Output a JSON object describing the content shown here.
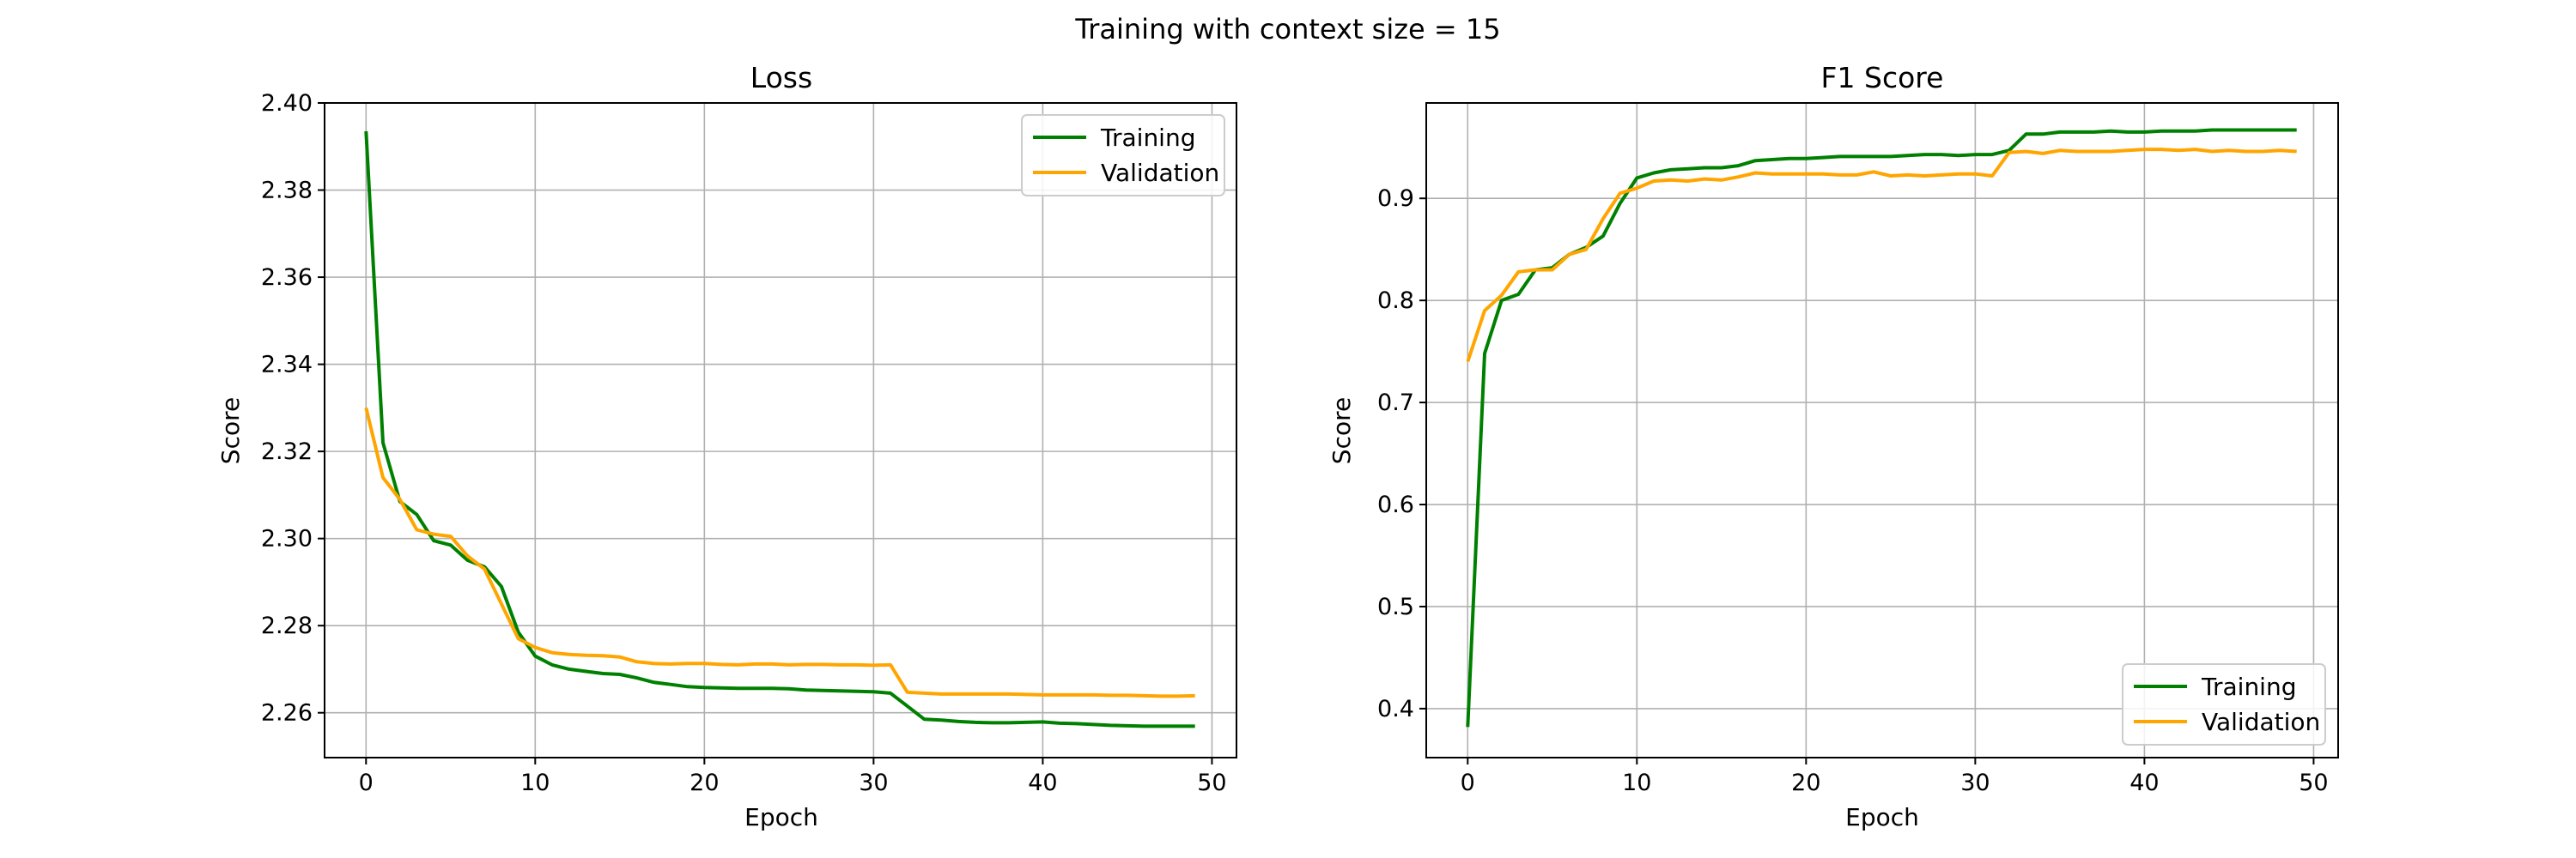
{
  "figure": {
    "suptitle": "Training with context size = 15"
  },
  "chart_data": [
    {
      "type": "line",
      "title": "Loss",
      "xlabel": "Epoch",
      "ylabel": "Score",
      "xlim": [
        -2.45,
        51.45
      ],
      "ylim": [
        2.2497,
        2.4
      ],
      "xticks": [
        0,
        10,
        20,
        30,
        40,
        50
      ],
      "yticks": [
        2.26,
        2.28,
        2.3,
        2.32,
        2.34,
        2.36,
        2.38,
        2.4
      ],
      "ytick_decimals": 2,
      "grid": true,
      "legend_position": "upper right",
      "x": [
        0,
        1,
        2,
        3,
        4,
        5,
        6,
        7,
        8,
        9,
        10,
        11,
        12,
        13,
        14,
        15,
        16,
        17,
        18,
        19,
        20,
        21,
        22,
        23,
        24,
        25,
        26,
        27,
        28,
        29,
        30,
        31,
        32,
        33,
        34,
        35,
        36,
        37,
        38,
        39,
        40,
        41,
        42,
        43,
        44,
        45,
        46,
        47,
        48,
        49
      ],
      "series": [
        {
          "name": "Training",
          "color": "#008000",
          "values": [
            2.3935,
            2.322,
            2.3085,
            2.3055,
            2.2995,
            2.2985,
            2.295,
            2.2935,
            2.289,
            2.2785,
            2.273,
            2.271,
            2.27,
            2.2695,
            2.269,
            2.2688,
            2.268,
            2.267,
            2.2665,
            2.266,
            2.2658,
            2.2657,
            2.2656,
            2.2656,
            2.2656,
            2.2655,
            2.2652,
            2.2651,
            2.265,
            2.2649,
            2.2648,
            2.2645,
            2.2615,
            2.2585,
            2.2583,
            2.258,
            2.2578,
            2.2577,
            2.2577,
            2.2578,
            2.2579,
            2.2576,
            2.2575,
            2.2573,
            2.2571,
            2.257,
            2.2569,
            2.2569,
            2.2569,
            2.2569
          ]
        },
        {
          "name": "Validation",
          "color": "#ffa500",
          "values": [
            2.33,
            2.314,
            2.309,
            2.302,
            2.301,
            2.3005,
            2.296,
            2.293,
            2.285,
            2.277,
            2.275,
            2.2738,
            2.2734,
            2.2732,
            2.2731,
            2.2728,
            2.2717,
            2.2713,
            2.2712,
            2.2713,
            2.2713,
            2.2711,
            2.271,
            2.2712,
            2.2712,
            2.271,
            2.2711,
            2.2711,
            2.271,
            2.271,
            2.2709,
            2.271,
            2.2647,
            2.2645,
            2.2643,
            2.2643,
            2.2643,
            2.2643,
            2.2643,
            2.2642,
            2.2641,
            2.2641,
            2.2641,
            2.2641,
            2.264,
            2.264,
            2.2639,
            2.2638,
            2.2638,
            2.2639
          ]
        }
      ]
    },
    {
      "type": "line",
      "title": "F1 Score",
      "xlabel": "Epoch",
      "ylabel": "Score",
      "xlim": [
        -2.45,
        51.45
      ],
      "ylim": [
        0.352,
        0.9935
      ],
      "xticks": [
        0,
        10,
        20,
        30,
        40,
        50
      ],
      "yticks": [
        0.4,
        0.5,
        0.6,
        0.7,
        0.8,
        0.9
      ],
      "ytick_decimals": 1,
      "grid": true,
      "legend_position": "lower right",
      "x": [
        0,
        1,
        2,
        3,
        4,
        5,
        6,
        7,
        8,
        9,
        10,
        11,
        12,
        13,
        14,
        15,
        16,
        17,
        18,
        19,
        20,
        21,
        22,
        23,
        24,
        25,
        26,
        27,
        28,
        29,
        30,
        31,
        32,
        33,
        34,
        35,
        36,
        37,
        38,
        39,
        40,
        41,
        42,
        43,
        44,
        45,
        46,
        47,
        48,
        49
      ],
      "series": [
        {
          "name": "Training",
          "color": "#008000",
          "values": [
            0.382,
            0.748,
            0.8,
            0.806,
            0.83,
            0.832,
            0.845,
            0.852,
            0.863,
            0.895,
            0.92,
            0.925,
            0.928,
            0.929,
            0.93,
            0.93,
            0.932,
            0.937,
            0.938,
            0.939,
            0.939,
            0.94,
            0.941,
            0.941,
            0.941,
            0.941,
            0.942,
            0.943,
            0.943,
            0.942,
            0.943,
            0.943,
            0.947,
            0.963,
            0.963,
            0.965,
            0.965,
            0.965,
            0.966,
            0.965,
            0.965,
            0.966,
            0.966,
            0.966,
            0.967,
            0.967,
            0.967,
            0.967,
            0.967,
            0.967
          ]
        },
        {
          "name": "Validation",
          "color": "#ffa500",
          "values": [
            0.74,
            0.79,
            0.805,
            0.828,
            0.83,
            0.83,
            0.845,
            0.85,
            0.88,
            0.905,
            0.91,
            0.917,
            0.918,
            0.917,
            0.919,
            0.918,
            0.921,
            0.925,
            0.924,
            0.924,
            0.924,
            0.924,
            0.923,
            0.923,
            0.926,
            0.922,
            0.923,
            0.922,
            0.923,
            0.924,
            0.924,
            0.922,
            0.945,
            0.946,
            0.944,
            0.947,
            0.946,
            0.946,
            0.946,
            0.947,
            0.948,
            0.948,
            0.947,
            0.948,
            0.946,
            0.947,
            0.946,
            0.946,
            0.947,
            0.946
          ]
        }
      ]
    }
  ]
}
